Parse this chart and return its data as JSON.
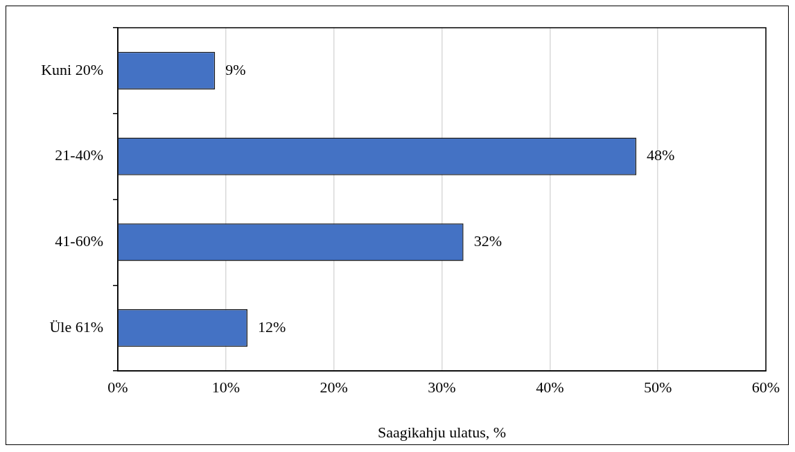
{
  "chart_data": {
    "type": "bar",
    "orientation": "horizontal",
    "categories": [
      "Kuni 20%",
      "21-40%",
      "41-60%",
      "Üle 61%"
    ],
    "values": [
      9,
      48,
      32,
      12
    ],
    "value_labels": [
      "9%",
      "48%",
      "32%",
      "12%"
    ],
    "color": "#4472c4",
    "xlabel": "Saagikahju ulatus, %",
    "xlim": [
      0,
      60
    ],
    "xticks": [
      {
        "value": 0,
        "label": "0%"
      },
      {
        "value": 10,
        "label": "10%"
      },
      {
        "value": 20,
        "label": "20%"
      },
      {
        "value": 30,
        "label": "30%"
      },
      {
        "value": 40,
        "label": "40%"
      },
      {
        "value": 50,
        "label": "50%"
      },
      {
        "value": 60,
        "label": "60%"
      }
    ],
    "grid": "x",
    "legend": false
  }
}
